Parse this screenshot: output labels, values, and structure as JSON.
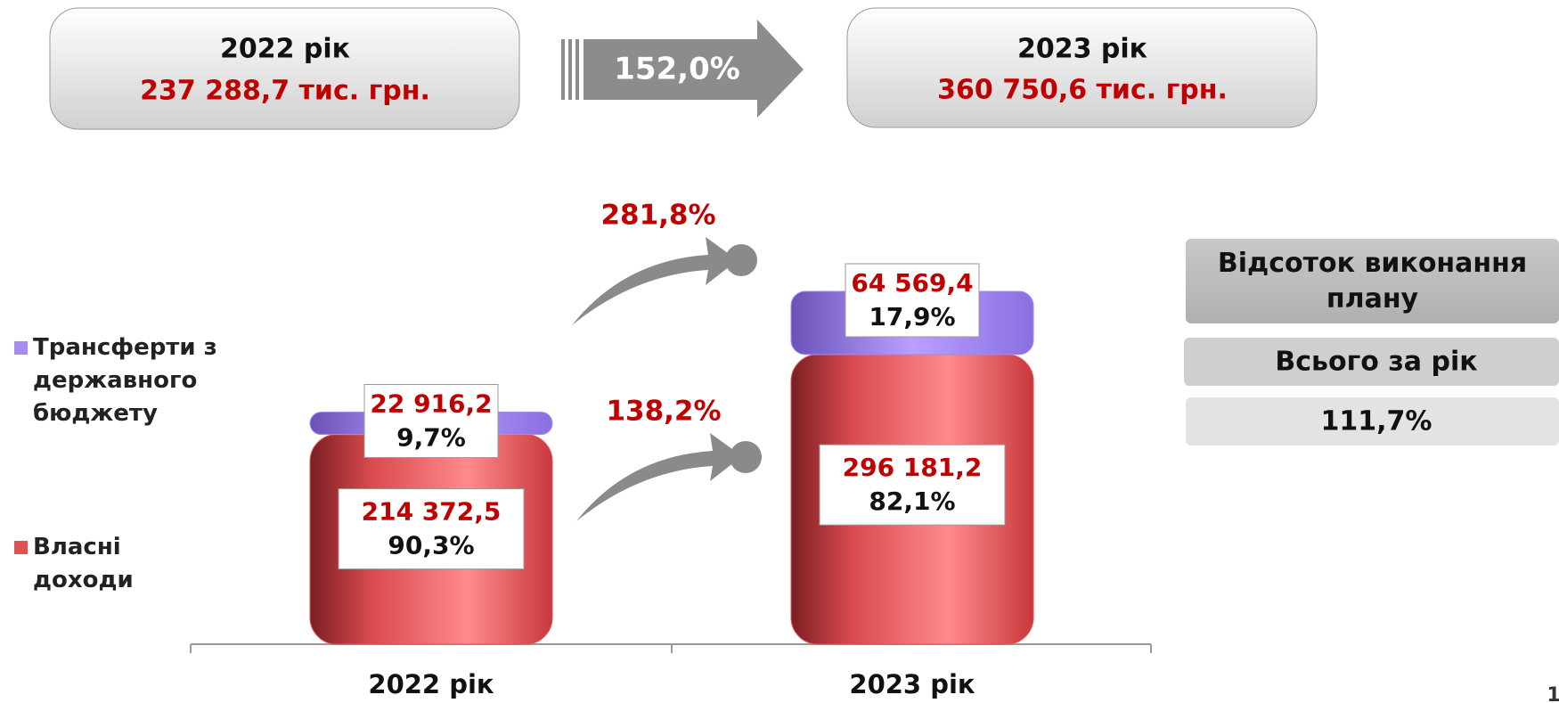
{
  "header": {
    "left": {
      "year": "2022 рік",
      "amount": "237 288,7 тис. грн."
    },
    "growth": "152,0%",
    "right": {
      "year": "2023 рік",
      "amount": "360 750,6 тис. грн."
    }
  },
  "chart_data": {
    "type": "bar",
    "stacked": true,
    "categories": [
      "2022 рік",
      "2023 рік"
    ],
    "series": [
      {
        "name": "Власні доходи",
        "color": "#e05252",
        "values": [
          214372.5,
          296181.2
        ],
        "value_labels": [
          "214 372,5",
          "296 181,2"
        ],
        "share_labels": [
          "90,3%",
          "82,1%"
        ],
        "growth_label": "138,2%"
      },
      {
        "name": "Трансферти з державного бюджету",
        "color": "#a98af2",
        "values": [
          22916.2,
          64569.4
        ],
        "value_labels": [
          "22 916,2",
          "64 569,4"
        ],
        "share_labels": [
          "9,7%",
          "17,9%"
        ],
        "growth_label": "281,8%"
      }
    ],
    "legend": "left"
  },
  "plan_panel": {
    "title": "Відсоток виконання плану",
    "period": "Всього за рік",
    "value": "111,7%"
  },
  "page_number": "1"
}
